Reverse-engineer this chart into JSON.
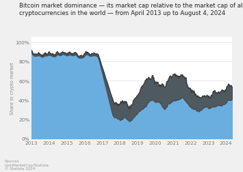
{
  "title_line1": "Bitcoin market dominance — its market cap relative to the market cap of all other",
  "title_line2": "cryptocurrencies in the world — from April 2013 up to August 4, 2024",
  "ylabel": "Share in crypto market",
  "source_label": "Sources",
  "source_text": "CoinMarketCap/Statista",
  "source_date": "© Statista 2024",
  "ytick_labels": [
    "0%",
    "20%",
    "40%",
    "60%",
    "80%",
    "100%"
  ],
  "yticks": [
    0,
    20,
    40,
    60,
    80,
    100
  ],
  "ylim": [
    0,
    105
  ],
  "fill_color_light_blue": "#6aaee0",
  "fill_color_dark_blue": "#2b75c0",
  "fill_color_dark_grey": "#4a4a4a",
  "line_color": "#3a3a3a",
  "bg_color": "#f0f0f0",
  "plot_bg": "#ffffff",
  "title_fontsize": 6.2,
  "axis_fontsize": 5.2,
  "ylabel_fontsize": 4.8,
  "source_fontsize": 4.0
}
